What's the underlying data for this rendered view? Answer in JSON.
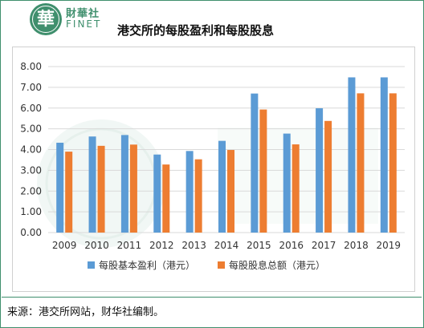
{
  "header": {
    "logo_mark": "華",
    "logo_cn": "財華社",
    "logo_en": "FINET",
    "title": "港交所的每股盈利和每股股息"
  },
  "colors": {
    "brand": "#3f8f6d",
    "series_eps": "#5b9bd5",
    "series_dps": "#ed7d31",
    "grid": "#d9d9d9"
  },
  "chart_data": {
    "type": "bar",
    "title": "港交所的每股盈利和每股股息",
    "xlabel": "",
    "ylabel": "",
    "ylim": [
      0,
      8
    ],
    "yticks": [
      "0.00",
      "1.00",
      "2.00",
      "3.00",
      "4.00",
      "5.00",
      "6.00",
      "7.00",
      "8.00"
    ],
    "grid": true,
    "legend_position": "bottom",
    "categories": [
      "2009",
      "2010",
      "2011",
      "2012",
      "2013",
      "2014",
      "2015",
      "2016",
      "2017",
      "2018",
      "2019"
    ],
    "series": [
      {
        "name": "每股基本盈利（港元）",
        "color": "#5b9bd5",
        "values": [
          4.33,
          4.63,
          4.7,
          3.76,
          3.93,
          4.42,
          6.7,
          4.77,
          5.99,
          7.48,
          7.48
        ]
      },
      {
        "name": "每股股息总额（港元）",
        "color": "#ed7d31",
        "values": [
          3.9,
          4.18,
          4.24,
          3.28,
          3.53,
          3.98,
          5.93,
          4.25,
          5.38,
          6.71,
          6.71
        ]
      }
    ]
  },
  "footer": {
    "source": "来源：港交所网站，财华社编制。"
  }
}
